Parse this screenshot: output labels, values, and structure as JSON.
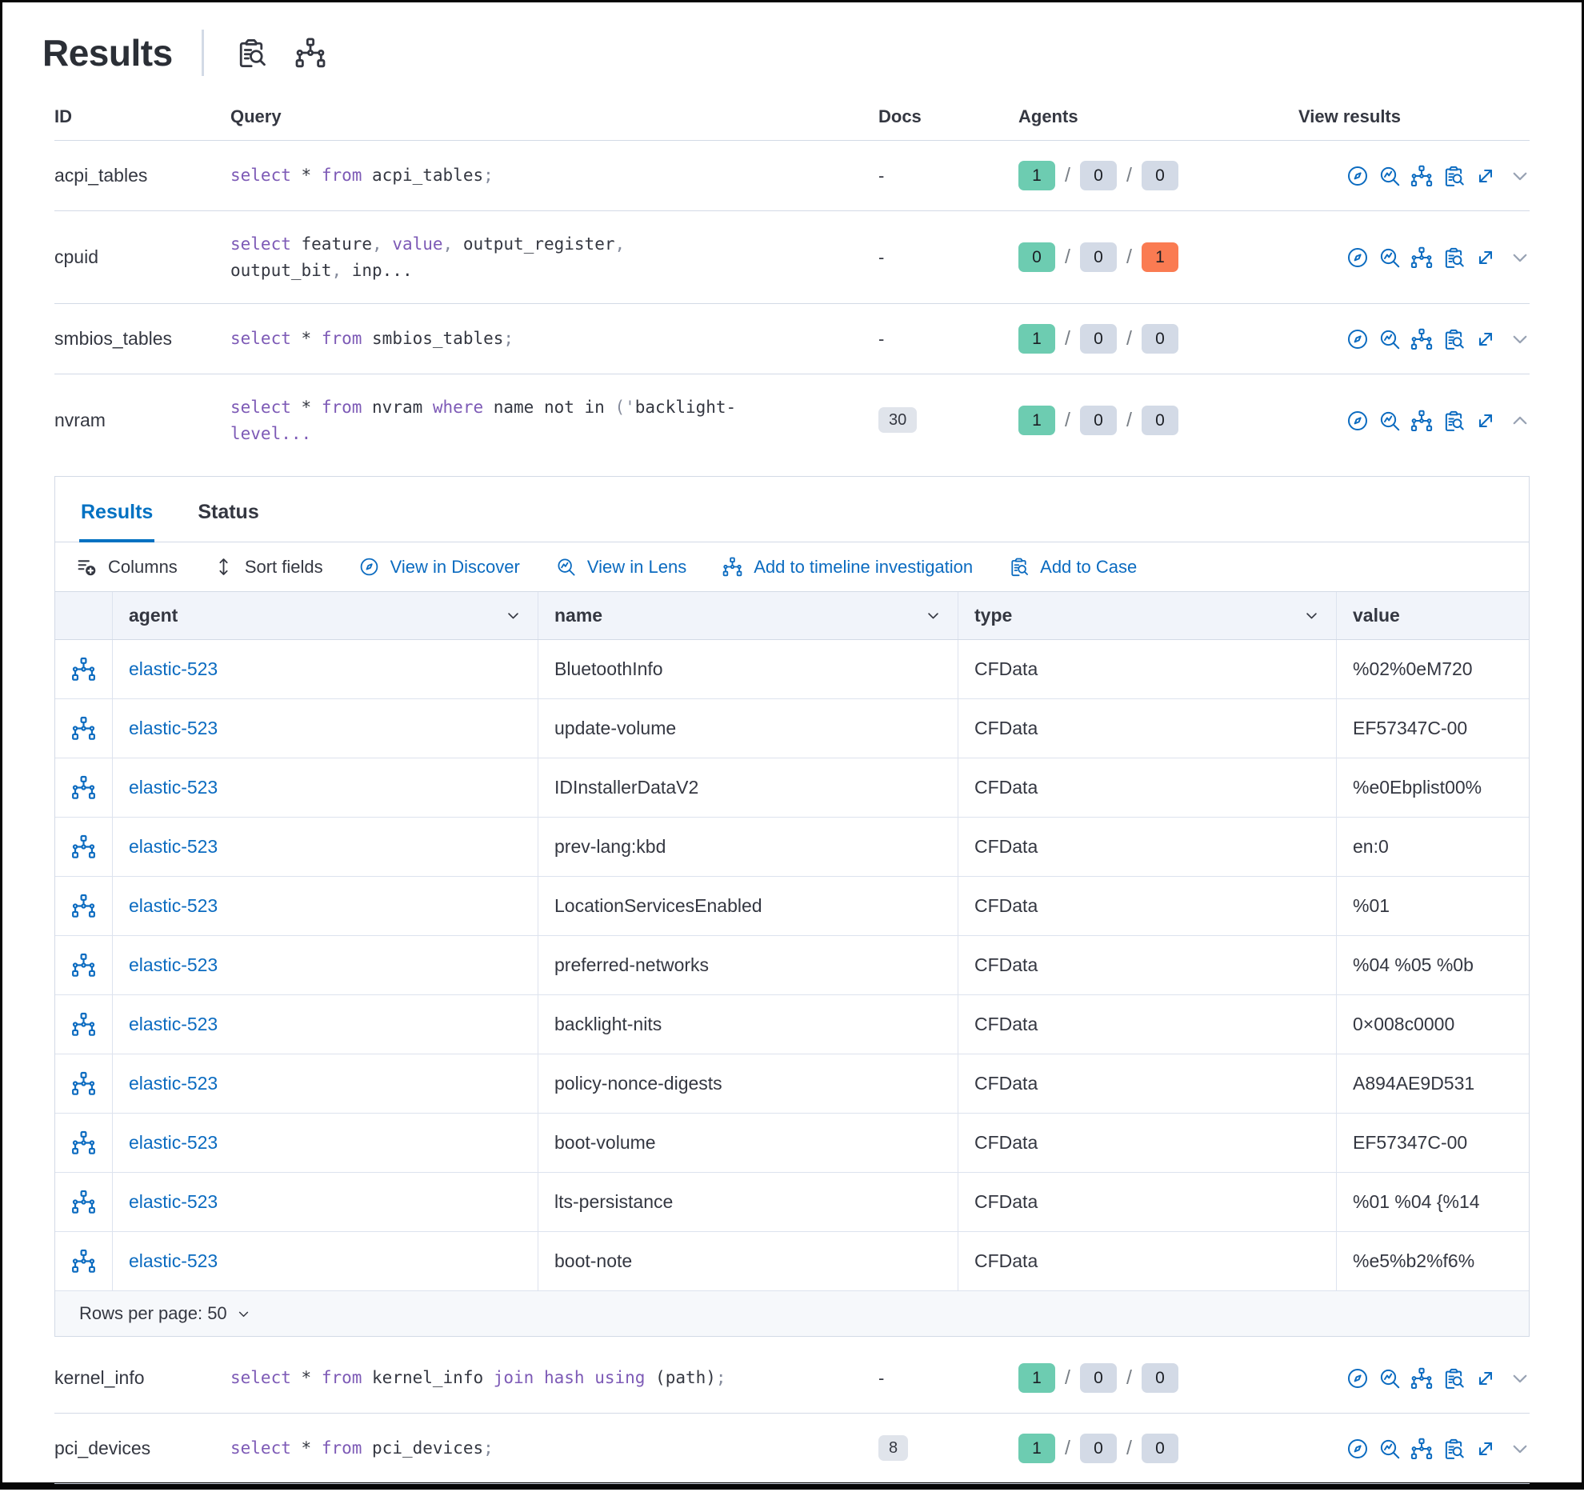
{
  "title": "Results",
  "title_icons": [
    {
      "name": "inspect-saved-query-icon"
    },
    {
      "name": "timeline-icon"
    }
  ],
  "colors": {
    "text": "#343741",
    "border": "#d3dae6",
    "link": "#0b6bc0",
    "keyword": "#7d5ab6",
    "punct": "#858b9c",
    "success": "#6dccb1",
    "danger": "#fa7b52",
    "default-badge": "#d3dae6",
    "docsbg": "#e0e4eb",
    "tab-active": "#0071c2"
  },
  "table": {
    "headers": {
      "id": "ID",
      "query": "Query",
      "docs": "Docs",
      "agents": "Agents",
      "view": "View results"
    },
    "view_actions": [
      "view-in-discover",
      "view-in-lens",
      "add-to-timeline",
      "add-to-case",
      "expand",
      "toggle-details"
    ],
    "rows": [
      {
        "id": "acpi_tables",
        "query": [
          {
            "t": "select ",
            "c": "kw"
          },
          {
            "t": "* ",
            "c": "pl"
          },
          {
            "t": "from ",
            "c": "kw"
          },
          {
            "t": "acpi_tables",
            "c": "pl"
          },
          {
            "t": ";",
            "c": "pu"
          }
        ],
        "docs": {
          "text": "-",
          "badge": false
        },
        "agents": [
          {
            "v": "1",
            "s": "success"
          },
          {
            "v": "0",
            "s": "default"
          },
          {
            "v": "0",
            "s": "default"
          }
        ],
        "expanded": false
      },
      {
        "id": "cpuid",
        "query": [
          {
            "t": "select ",
            "c": "kw"
          },
          {
            "t": "feature",
            "c": "pl"
          },
          {
            "t": ", ",
            "c": "pu"
          },
          {
            "t": "value",
            "c": "kw"
          },
          {
            "t": ", ",
            "c": "pu"
          },
          {
            "t": "output_register",
            "c": "pl"
          },
          {
            "t": ", ",
            "c": "pu"
          },
          {
            "t": "output_bit",
            "c": "pl"
          },
          {
            "t": ", ",
            "c": "pu"
          },
          {
            "t": "inp...",
            "c": "pl"
          }
        ],
        "docs": {
          "text": "-",
          "badge": false
        },
        "agents": [
          {
            "v": "0",
            "s": "success"
          },
          {
            "v": "0",
            "s": "default"
          },
          {
            "v": "1",
            "s": "danger"
          }
        ],
        "expanded": false
      },
      {
        "id": "smbios_tables",
        "query": [
          {
            "t": "select ",
            "c": "kw"
          },
          {
            "t": "* ",
            "c": "pl"
          },
          {
            "t": "from ",
            "c": "kw"
          },
          {
            "t": "smbios_tables",
            "c": "pl"
          },
          {
            "t": ";",
            "c": "pu"
          }
        ],
        "docs": {
          "text": "-",
          "badge": false
        },
        "agents": [
          {
            "v": "1",
            "s": "success"
          },
          {
            "v": "0",
            "s": "default"
          },
          {
            "v": "0",
            "s": "default"
          }
        ],
        "expanded": false
      },
      {
        "id": "nvram",
        "query": [
          {
            "t": "select ",
            "c": "kw"
          },
          {
            "t": "* ",
            "c": "pl"
          },
          {
            "t": "from ",
            "c": "kw"
          },
          {
            "t": "nvram ",
            "c": "pl"
          },
          {
            "t": "where ",
            "c": "kw"
          },
          {
            "t": "name not in ",
            "c": "pl"
          },
          {
            "t": "('",
            "c": "pu"
          },
          {
            "t": "backlight-",
            "c": "pl"
          },
          {
            "t": "level...",
            "c": "kw"
          }
        ],
        "docs": {
          "text": "30",
          "badge": true
        },
        "agents": [
          {
            "v": "1",
            "s": "success"
          },
          {
            "v": "0",
            "s": "default"
          },
          {
            "v": "0",
            "s": "default"
          }
        ],
        "expanded": true
      },
      {
        "id": "kernel_info",
        "query": [
          {
            "t": "select ",
            "c": "kw"
          },
          {
            "t": "* ",
            "c": "pl"
          },
          {
            "t": "from ",
            "c": "kw"
          },
          {
            "t": "kernel_info ",
            "c": "pl"
          },
          {
            "t": "join ",
            "c": "kw"
          },
          {
            "t": "hash ",
            "c": "kw"
          },
          {
            "t": "using ",
            "c": "kw"
          },
          {
            "t": "(path)",
            "c": "pl"
          },
          {
            "t": ";",
            "c": "pu"
          }
        ],
        "docs": {
          "text": "-",
          "badge": false
        },
        "agents": [
          {
            "v": "1",
            "s": "success"
          },
          {
            "v": "0",
            "s": "default"
          },
          {
            "v": "0",
            "s": "default"
          }
        ],
        "expanded": false
      },
      {
        "id": "pci_devices",
        "query": [
          {
            "t": "select ",
            "c": "kw"
          },
          {
            "t": "* ",
            "c": "pl"
          },
          {
            "t": "from ",
            "c": "kw"
          },
          {
            "t": "pci_devices",
            "c": "pl"
          },
          {
            "t": ";",
            "c": "pu"
          }
        ],
        "docs": {
          "text": "8",
          "badge": true
        },
        "agents": [
          {
            "v": "1",
            "s": "success"
          },
          {
            "v": "0",
            "s": "default"
          },
          {
            "v": "0",
            "s": "default"
          }
        ],
        "expanded": false
      }
    ]
  },
  "panel": {
    "tabs": [
      {
        "label": "Results",
        "active": true
      },
      {
        "label": "Status",
        "active": false
      }
    ],
    "toolbar": [
      {
        "label": "Columns",
        "icon": "columns-icon",
        "style": "dark"
      },
      {
        "label": "Sort fields",
        "icon": "sort-icon",
        "style": "dark"
      },
      {
        "label": "View in Discover",
        "icon": "discover-compass-icon",
        "style": "blue"
      },
      {
        "label": "View in Lens",
        "icon": "lens-icon",
        "style": "blue"
      },
      {
        "label": "Add to timeline investigation",
        "icon": "timeline-icon",
        "style": "blue"
      },
      {
        "label": "Add to Case",
        "icon": "case-icon",
        "style": "blue"
      }
    ],
    "grid": {
      "columns": [
        {
          "label": "agent",
          "sortable": true
        },
        {
          "label": "name",
          "sortable": true
        },
        {
          "label": "type",
          "sortable": true
        },
        {
          "label": "value",
          "sortable": false
        }
      ],
      "rows": [
        {
          "agent": "elastic-523",
          "name": "BluetoothInfo",
          "type": "CFData",
          "value": "%02%0eM720"
        },
        {
          "agent": "elastic-523",
          "name": "update-volume",
          "type": "CFData",
          "value": "EF57347C-00"
        },
        {
          "agent": "elastic-523",
          "name": "IDInstallerDataV2",
          "type": "CFData",
          "value": "%e0Ebplist00%"
        },
        {
          "agent": "elastic-523",
          "name": "prev-lang:kbd",
          "type": "CFData",
          "value": "en:0"
        },
        {
          "agent": "elastic-523",
          "name": "LocationServicesEnabled",
          "type": "CFData",
          "value": "%01"
        },
        {
          "agent": "elastic-523",
          "name": "preferred-networks",
          "type": "CFData",
          "value": "%04 %05 %0b"
        },
        {
          "agent": "elastic-523",
          "name": "backlight-nits",
          "type": "CFData",
          "value": "0×008c0000"
        },
        {
          "agent": "elastic-523",
          "name": "policy-nonce-digests",
          "type": "CFData",
          "value": "A894AE9D531"
        },
        {
          "agent": "elastic-523",
          "name": "boot-volume",
          "type": "CFData",
          "value": "EF57347C-00"
        },
        {
          "agent": "elastic-523",
          "name": "lts-persistance",
          "type": "CFData",
          "value": "%01 %04 {%14"
        },
        {
          "agent": "elastic-523",
          "name": "boot-note",
          "type": "CFData",
          "value": "%e5%b2%f6%"
        }
      ]
    },
    "rows_per_page": "Rows per page: 50"
  }
}
